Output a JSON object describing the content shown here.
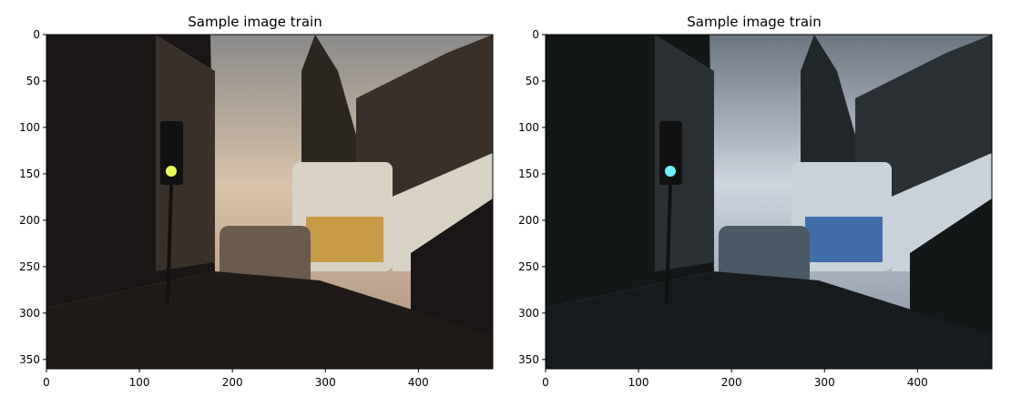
{
  "panels": [
    {
      "title": "Sample image train",
      "xticks": [
        "0",
        "100",
        "200",
        "300",
        "400"
      ],
      "yticks": [
        "0",
        "50",
        "100",
        "150",
        "200",
        "250",
        "300",
        "350"
      ],
      "xlim": [
        0,
        480
      ],
      "ylim": [
        360,
        0
      ],
      "palette": {
        "sky_top": "#8a8a8a",
        "sky_mid": "#d9c2a8",
        "sky_low": "#a88d78",
        "building_dark": "#1a1616",
        "building_mid": "#3a302a",
        "street": "#1f1a17",
        "bus_body": "#d8d2c4",
        "bus_band": "#c79a46",
        "car": "#6b5b4d",
        "light_glow": "#e8ff5a",
        "tower": "#2b2620"
      }
    },
    {
      "title": "Sample image train",
      "xticks": [
        "0",
        "100",
        "200",
        "300",
        "400"
      ],
      "yticks": [
        "0",
        "50",
        "100",
        "150",
        "200",
        "250",
        "300",
        "350"
      ],
      "xlim": [
        0,
        480
      ],
      "ylim": [
        360,
        0
      ],
      "palette": {
        "sky_top": "#6c7680",
        "sky_mid": "#cdd5df",
        "sky_low": "#7e8896",
        "building_dark": "#141718",
        "building_mid": "#2a3034",
        "street": "#171b1d",
        "bus_body": "#c9d2d8",
        "bus_band": "#3f6ea8",
        "car": "#4b5866",
        "light_glow": "#6ff2ff",
        "tower": "#22272b"
      }
    }
  ]
}
